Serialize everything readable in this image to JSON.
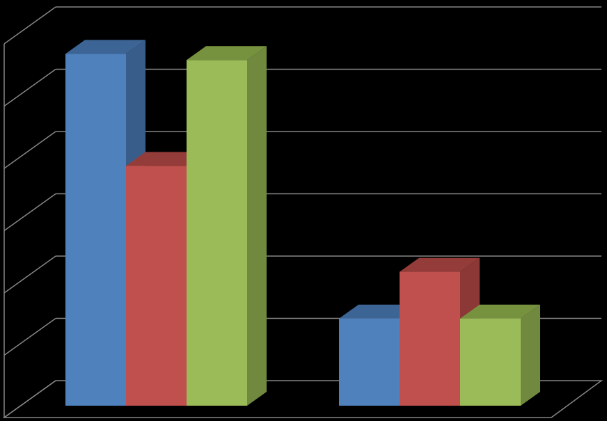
{
  "chart_data": {
    "type": "bar",
    "style": "3d-clustered-column",
    "categories": [
      "",
      ""
    ],
    "series": [
      {
        "values": [
          5.65,
          1.4
        ],
        "color": "#4F81BD",
        "side_color": "#385D8A",
        "top_color": "#3C6595"
      },
      {
        "values": [
          3.85,
          2.15
        ],
        "color": "#C0504D",
        "side_color": "#8C3836",
        "top_color": "#943C39"
      },
      {
        "values": [
          5.55,
          1.4
        ],
        "color": "#9BBB59",
        "side_color": "#71893F",
        "top_color": "#77923F"
      }
    ],
    "ylim": [
      0,
      6
    ],
    "grid": true,
    "legend": "none",
    "gridline_color": "#868686",
    "background": "#000000"
  }
}
